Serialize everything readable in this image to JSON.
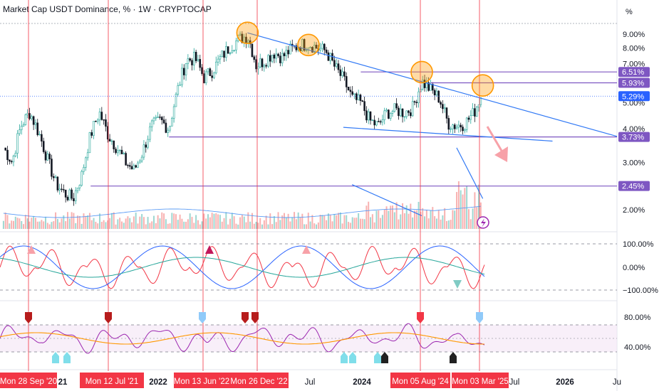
{
  "header": {
    "title": "Market Cap USDT Dominance, % · 1W · CRYPTOCAP",
    "unit": "%"
  },
  "chart_data": {
    "type": "candlestick",
    "title": "Market Cap USDT Dominance, % · 1W · CRYPTOCAP",
    "y_ticks": [
      "9.00%",
      "8.00%",
      "7.00%",
      "6.00%",
      "5.00%",
      "4.00%",
      "3.00%",
      "2.00%"
    ],
    "y_tick_values": [
      9,
      8,
      7,
      6,
      5,
      4,
      3,
      2
    ],
    "price_tags": [
      {
        "label": "6.51%",
        "value": 6.51,
        "color": "#7e57c2"
      },
      {
        "label": "5.93%",
        "value": 5.93,
        "color": "#7e57c2"
      },
      {
        "label": "5.29%",
        "value": 5.29,
        "color": "#2962ff"
      },
      {
        "label": "3.73%",
        "value": 3.73,
        "color": "#7e57c2"
      },
      {
        "label": "2.45%",
        "value": 2.45,
        "color": "#7e57c2"
      }
    ],
    "price_path": [
      [
        "2020-08",
        3.4
      ],
      [
        "2020-09",
        3.0
      ],
      [
        "2020-10",
        4.1
      ],
      [
        "2020-11",
        4.6
      ],
      [
        "2020-12",
        3.9
      ],
      [
        "2021-01",
        3.1
      ],
      [
        "2021-02",
        2.5
      ],
      [
        "2021-03",
        2.3
      ],
      [
        "2021-04",
        2.2
      ],
      [
        "2021-05",
        2.7
      ],
      [
        "2021-06",
        3.8
      ],
      [
        "2021-07",
        4.6
      ],
      [
        "2021-08",
        3.8
      ],
      [
        "2021-09",
        3.4
      ],
      [
        "2021-10",
        3.0
      ],
      [
        "2021-11",
        2.8
      ],
      [
        "2021-12",
        3.3
      ],
      [
        "2022-01",
        4.1
      ],
      [
        "2022-02",
        4.3
      ],
      [
        "2022-03",
        4.0
      ],
      [
        "2022-04",
        5.6
      ],
      [
        "2022-05",
        7.2
      ],
      [
        "2022-06",
        7.3
      ],
      [
        "2022-07",
        6.2
      ],
      [
        "2022-08",
        6.6
      ],
      [
        "2022-09",
        7.4
      ],
      [
        "2022-10",
        8.1
      ],
      [
        "2022-11",
        8.6
      ],
      [
        "2022-12",
        8.9
      ],
      [
        "2023-01",
        6.9
      ],
      [
        "2023-02",
        7.2
      ],
      [
        "2023-03",
        7.7
      ],
      [
        "2023-04",
        7.4
      ],
      [
        "2023-05",
        7.9
      ],
      [
        "2023-06",
        8.2
      ],
      [
        "2023-07",
        8.3
      ],
      [
        "2023-08",
        8.0
      ],
      [
        "2023-09",
        7.8
      ],
      [
        "2023-10",
        6.8
      ],
      [
        "2023-11",
        6.1
      ],
      [
        "2023-12",
        5.2
      ],
      [
        "2024-01",
        5.0
      ],
      [
        "2024-02",
        4.3
      ],
      [
        "2024-03",
        4.1
      ],
      [
        "2024-04",
        4.6
      ],
      [
        "2024-05",
        4.7
      ],
      [
        "2024-06",
        4.6
      ],
      [
        "2024-07",
        4.8
      ],
      [
        "2024-08",
        6.0
      ],
      [
        "2024-09",
        5.6
      ],
      [
        "2024-10",
        5.2
      ],
      [
        "2024-11",
        4.2
      ],
      [
        "2024-12",
        4.1
      ],
      [
        "2025-01",
        4.2
      ],
      [
        "2025-02",
        4.6
      ],
      [
        "2025-03",
        5.5
      ]
    ],
    "resistance_highs": [
      {
        "date": "2022-12",
        "value": 9.1
      },
      {
        "date": "2023-07",
        "value": 8.2
      },
      {
        "date": "2024-08",
        "value": 6.5
      },
      {
        "date": "2025-03",
        "value": 5.8
      }
    ],
    "osc1_ticks": [
      "100.00%",
      "0.00%",
      "−100.00%"
    ],
    "osc2_ticks": [
      "80.00%",
      "40.00%"
    ],
    "x_labels": [
      {
        "text": "21",
        "style": "bold"
      },
      {
        "text": "2022",
        "style": "bold"
      },
      {
        "text": "Jul",
        "style": "light"
      },
      {
        "text": "2024",
        "style": "bold"
      },
      {
        "text": "Jul",
        "style": "light"
      },
      {
        "text": "2026",
        "style": "bold"
      },
      {
        "text": "Ju",
        "style": "light"
      }
    ],
    "event_labels": [
      "Mon 28 Sep '20",
      "Mon 12 Jul '21",
      "Mon 13 Jun '22",
      "Mon 26 Dec '22",
      "Mon 05 Aug '24",
      "Mon 03 Mar '25"
    ],
    "colors": {
      "up": "#26a69a",
      "down": "#131722",
      "event_line": "#f23645",
      "trend_line": "#3179f5",
      "level_line": "#7e57c2",
      "highlight_circle": "#ff9800"
    }
  }
}
